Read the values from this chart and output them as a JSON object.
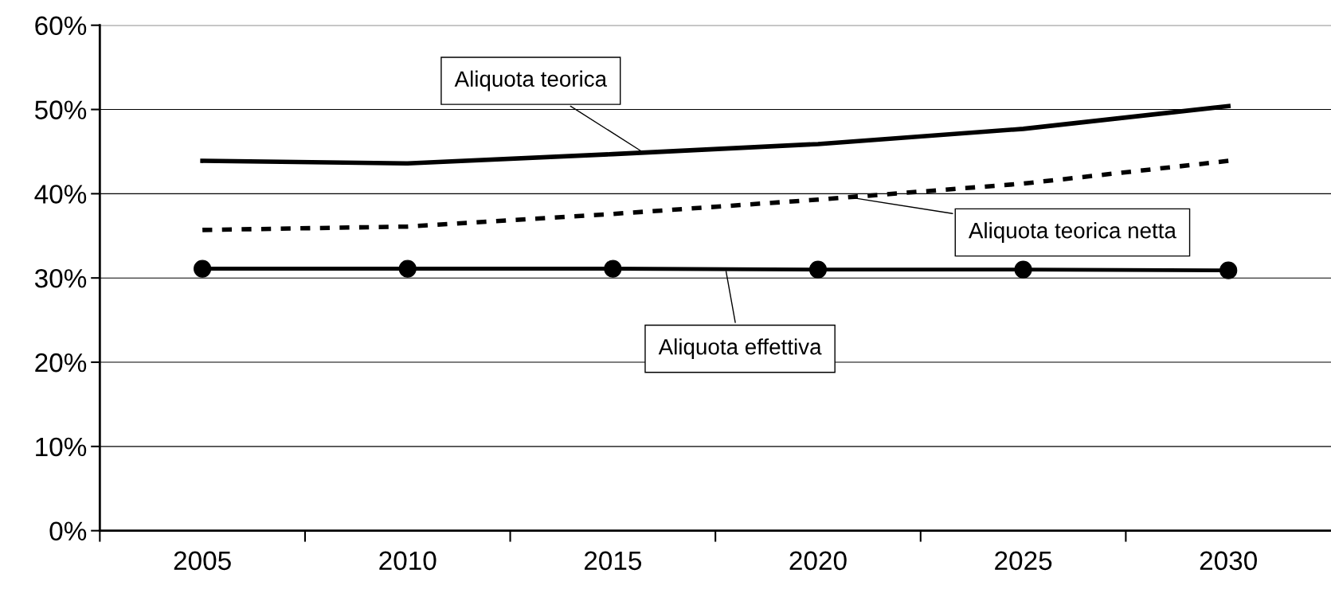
{
  "chart_data": {
    "type": "line",
    "categories": [
      "2005",
      "2010",
      "2015",
      "2020",
      "2025",
      "2030"
    ],
    "series": [
      {
        "name": "Aliquota teorica",
        "color": "#000000",
        "line_style": "solid",
        "marker": "none",
        "values": [
          43.9,
          43.6,
          44.7,
          45.9,
          47.7,
          50.4
        ]
      },
      {
        "name": "Aliquota teorica netta",
        "color": "#000000",
        "line_style": "dashed",
        "marker": "none",
        "values": [
          35.7,
          36.1,
          37.6,
          39.3,
          41.2,
          43.9
        ]
      },
      {
        "name": "Aliquota effettiva",
        "color": "#000000",
        "line_style": "solid",
        "marker": "circle",
        "values": [
          31.1,
          31.1,
          31.1,
          31.0,
          31.0,
          30.9
        ]
      }
    ],
    "ylim": [
      0,
      60
    ],
    "yticks": [
      {
        "value": 0,
        "label": "0%"
      },
      {
        "value": 10,
        "label": "10%"
      },
      {
        "value": 20,
        "label": "20%"
      },
      {
        "value": 30,
        "label": "30%"
      },
      {
        "value": 40,
        "label": "40%"
      },
      {
        "value": 50,
        "label": "50%"
      },
      {
        "value": 60,
        "label": "60%"
      }
    ],
    "grid": "y"
  }
}
